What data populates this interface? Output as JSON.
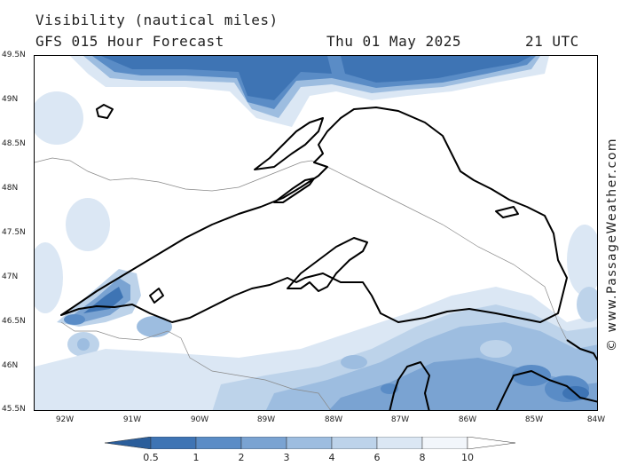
{
  "header": {
    "title": "Visibility (nautical miles)",
    "subtitle": "GFS 015 Hour Forecast",
    "date": "Thu 01 May 2025",
    "time": "21 UTC"
  },
  "credit": "© www.PassageWeather.com",
  "map": {
    "lat_labels": [
      "49.5N",
      "49N",
      "48.5N",
      "48N",
      "47.5N",
      "47N",
      "46.5N",
      "46N",
      "45.5N"
    ],
    "lon_labels": [
      "92W",
      "91W",
      "90W",
      "89W",
      "88W",
      "87W",
      "86W",
      "85W",
      "84W"
    ],
    "lon_range": [
      -92.4,
      -84.0
    ],
    "lat_range": [
      45.5,
      49.5
    ]
  },
  "legend": {
    "ticks": [
      "0.5",
      "1",
      "2",
      "3",
      "4",
      "6",
      "8",
      "10"
    ],
    "colors": [
      "#2b5e9b",
      "#3e74b4",
      "#5a8cc6",
      "#7aa3d2",
      "#9dbde0",
      "#bdd3ea",
      "#dbe7f4",
      "#f2f6fb",
      "#ffffff"
    ]
  }
}
